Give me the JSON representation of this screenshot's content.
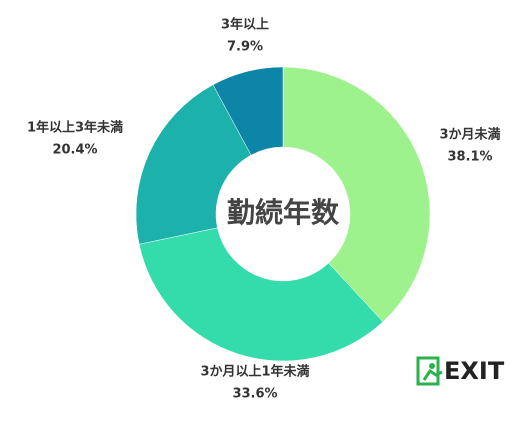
{
  "chart_data": {
    "type": "pie",
    "title": "勤続年数",
    "categories": [
      "3か月未満",
      "3か月以上1年未満",
      "1年以上3年未満",
      "3年以上"
    ],
    "values": [
      38.1,
      33.6,
      20.4,
      7.9
    ],
    "value_labels": [
      "38.1%",
      "33.6%",
      "20.4%",
      "7.9%"
    ],
    "colors": [
      "#9ef28e",
      "#33dcaa",
      "#1db1ac",
      "#0d85a6"
    ]
  },
  "logo": {
    "text": "EXIT"
  }
}
